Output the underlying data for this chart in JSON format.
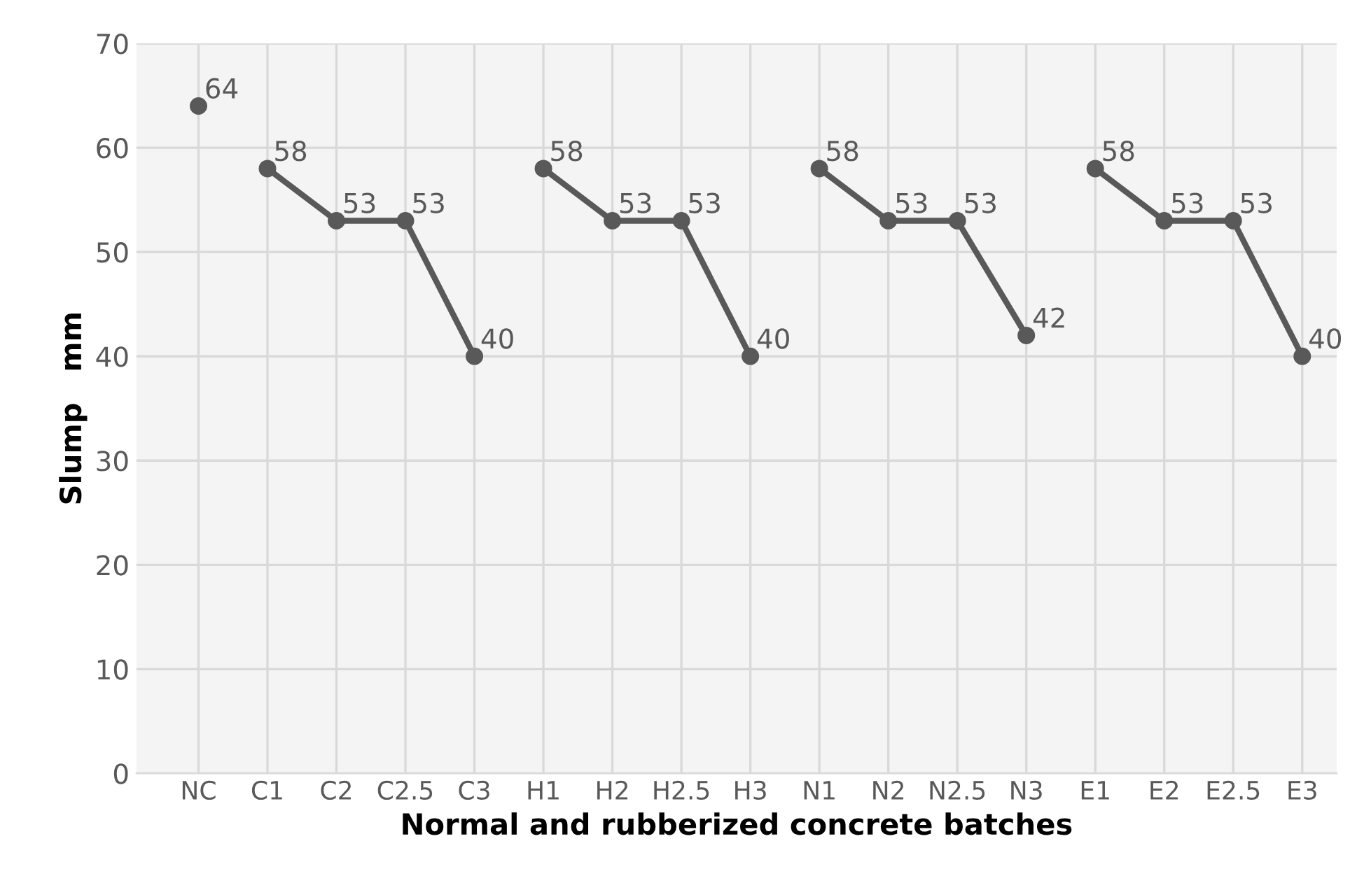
{
  "chart_data": {
    "type": "line",
    "xlabel": "Normal and rubberized concrete batches",
    "ylabel": "Slump   mm",
    "categories": [
      "NC",
      "C1",
      "C2",
      "C2.5",
      "C3",
      "H1",
      "H2",
      "H2.5",
      "H3",
      "N1",
      "N2",
      "N2.5",
      "N3",
      "E1",
      "E2",
      "E2.5",
      "E3"
    ],
    "series": [
      {
        "color": "#595959",
        "values": [
          64,
          null,
          null,
          null,
          null,
          null,
          null,
          null,
          null,
          null,
          null,
          null,
          null,
          null,
          null,
          null,
          null
        ]
      },
      {
        "color": "#595959",
        "values": [
          null,
          58,
          53,
          53,
          40,
          null,
          null,
          null,
          null,
          null,
          null,
          null,
          null,
          null,
          null,
          null,
          null
        ]
      },
      {
        "color": "#595959",
        "values": [
          null,
          null,
          null,
          null,
          null,
          58,
          53,
          53,
          40,
          null,
          null,
          null,
          null,
          null,
          null,
          null,
          null
        ]
      },
      {
        "color": "#595959",
        "values": [
          null,
          null,
          null,
          null,
          null,
          null,
          null,
          null,
          null,
          58,
          53,
          53,
          42,
          null,
          null,
          null,
          null
        ]
      },
      {
        "color": "#595959",
        "values": [
          null,
          null,
          null,
          null,
          null,
          null,
          null,
          null,
          null,
          null,
          null,
          null,
          null,
          58,
          53,
          53,
          40
        ]
      }
    ],
    "ylim": [
      0,
      70
    ],
    "yticks": [
      0,
      10,
      20,
      30,
      40,
      50,
      60,
      70
    ],
    "grid": true,
    "legend": false,
    "marker": "circle",
    "line_style": "solid",
    "data_labels": true
  }
}
